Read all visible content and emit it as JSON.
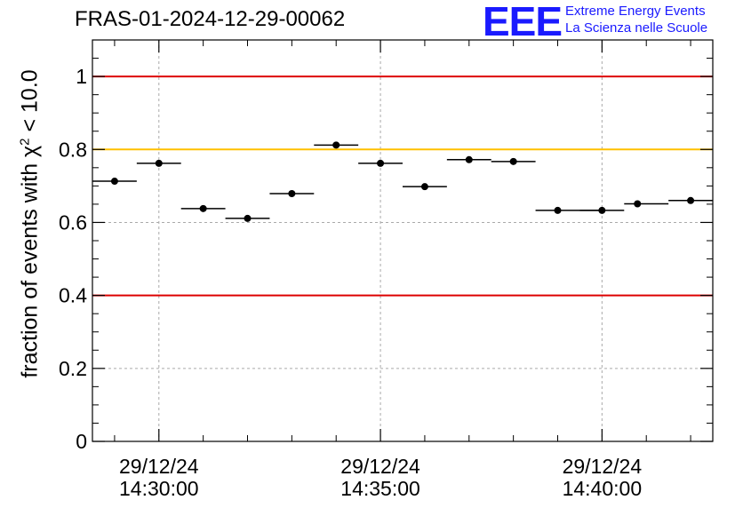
{
  "title": "FRAS-01-2024-12-29-00062",
  "logo": {
    "mark": "EEE",
    "line1": "Extreme Energy Events",
    "line2": "La Scienza nelle Scuole"
  },
  "colors": {
    "upper_limit": "#dd0000",
    "lower_limit": "#dd0000",
    "reference": "#ffc000",
    "logo": "#1a1aff",
    "points": "#000000",
    "grid": "#aaaaaa"
  },
  "chart_data": {
    "type": "scatter",
    "title": "FRAS-01-2024-12-29-00062",
    "ylabel": {
      "prefix": "fraction of events with ",
      "symbol": "χ",
      "superscript": "2",
      "suffix": " < 10.0"
    },
    "xlabel": "",
    "x_unit": "minutes after 29/12/24 14:30:00",
    "x_range": [
      -1.5,
      12.5
    ],
    "ylim": [
      0,
      1.1
    ],
    "yticks": [
      0,
      0.2,
      0.4,
      0.6,
      0.8,
      1
    ],
    "ytick_labels": [
      "0",
      "0.2",
      "0.4",
      "0.6",
      "0.8",
      "1"
    ],
    "xticks": [
      {
        "x": 0,
        "date": "29/12/24",
        "time": "14:30:00"
      },
      {
        "x": 5,
        "date": "29/12/24",
        "time": "14:35:00"
      },
      {
        "x": 10,
        "date": "29/12/24",
        "time": "14:40:00"
      }
    ],
    "grid": true,
    "hlines": [
      {
        "y": 1.0,
        "color": "#dd0000"
      },
      {
        "y": 0.8,
        "color": "#ffc000"
      },
      {
        "y": 0.4,
        "color": "#dd0000"
      }
    ],
    "points": [
      {
        "x": -1.0,
        "xlo": -1.5,
        "xhi": -0.5,
        "y": 0.713
      },
      {
        "x": 0.0,
        "xlo": -0.5,
        "xhi": 0.5,
        "y": 0.762
      },
      {
        "x": 1.0,
        "xlo": 0.5,
        "xhi": 1.5,
        "y": 0.638
      },
      {
        "x": 2.0,
        "xlo": 1.5,
        "xhi": 2.5,
        "y": 0.611
      },
      {
        "x": 3.0,
        "xlo": 2.5,
        "xhi": 3.5,
        "y": 0.679
      },
      {
        "x": 4.0,
        "xlo": 3.5,
        "xhi": 4.5,
        "y": 0.812
      },
      {
        "x": 5.0,
        "xlo": 4.5,
        "xhi": 5.5,
        "y": 0.762
      },
      {
        "x": 6.0,
        "xlo": 5.5,
        "xhi": 6.5,
        "y": 0.698
      },
      {
        "x": 7.0,
        "xlo": 6.5,
        "xhi": 7.5,
        "y": 0.772
      },
      {
        "x": 8.0,
        "xlo": 7.5,
        "xhi": 8.5,
        "y": 0.767
      },
      {
        "x": 9.0,
        "xlo": 8.5,
        "xhi": 10.0,
        "y": 0.633
      },
      {
        "x": 10.0,
        "xlo": 9.5,
        "xhi": 10.5,
        "y": 0.633
      },
      {
        "x": 10.8,
        "xlo": 10.5,
        "xhi": 11.5,
        "y": 0.651
      },
      {
        "x": 12.0,
        "xlo": 11.5,
        "xhi": 12.5,
        "y": 0.66
      }
    ]
  }
}
